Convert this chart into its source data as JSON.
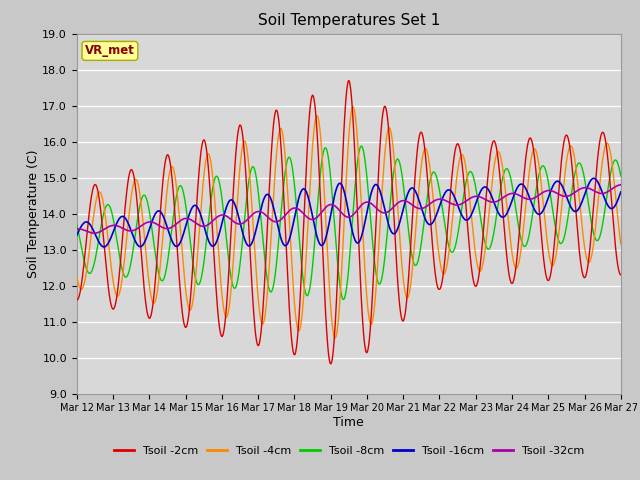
{
  "title": "Soil Temperatures Set 1",
  "xlabel": "Time",
  "ylabel": "Soil Temperature (C)",
  "ylim": [
    9.0,
    19.0
  ],
  "yticks": [
    9.0,
    10.0,
    11.0,
    12.0,
    13.0,
    14.0,
    15.0,
    16.0,
    17.0,
    18.0,
    19.0
  ],
  "date_start": 12,
  "date_end": 27,
  "colors": {
    "Tsoil -2cm": "#dd0000",
    "Tsoil -4cm": "#ff8800",
    "Tsoil -8cm": "#00cc00",
    "Tsoil -16cm": "#0000cc",
    "Tsoil -32cm": "#aa00aa"
  },
  "legend_label": "VR_met",
  "fig_facecolor": "#c8c8c8",
  "ax_facecolor": "#d8d8d8"
}
